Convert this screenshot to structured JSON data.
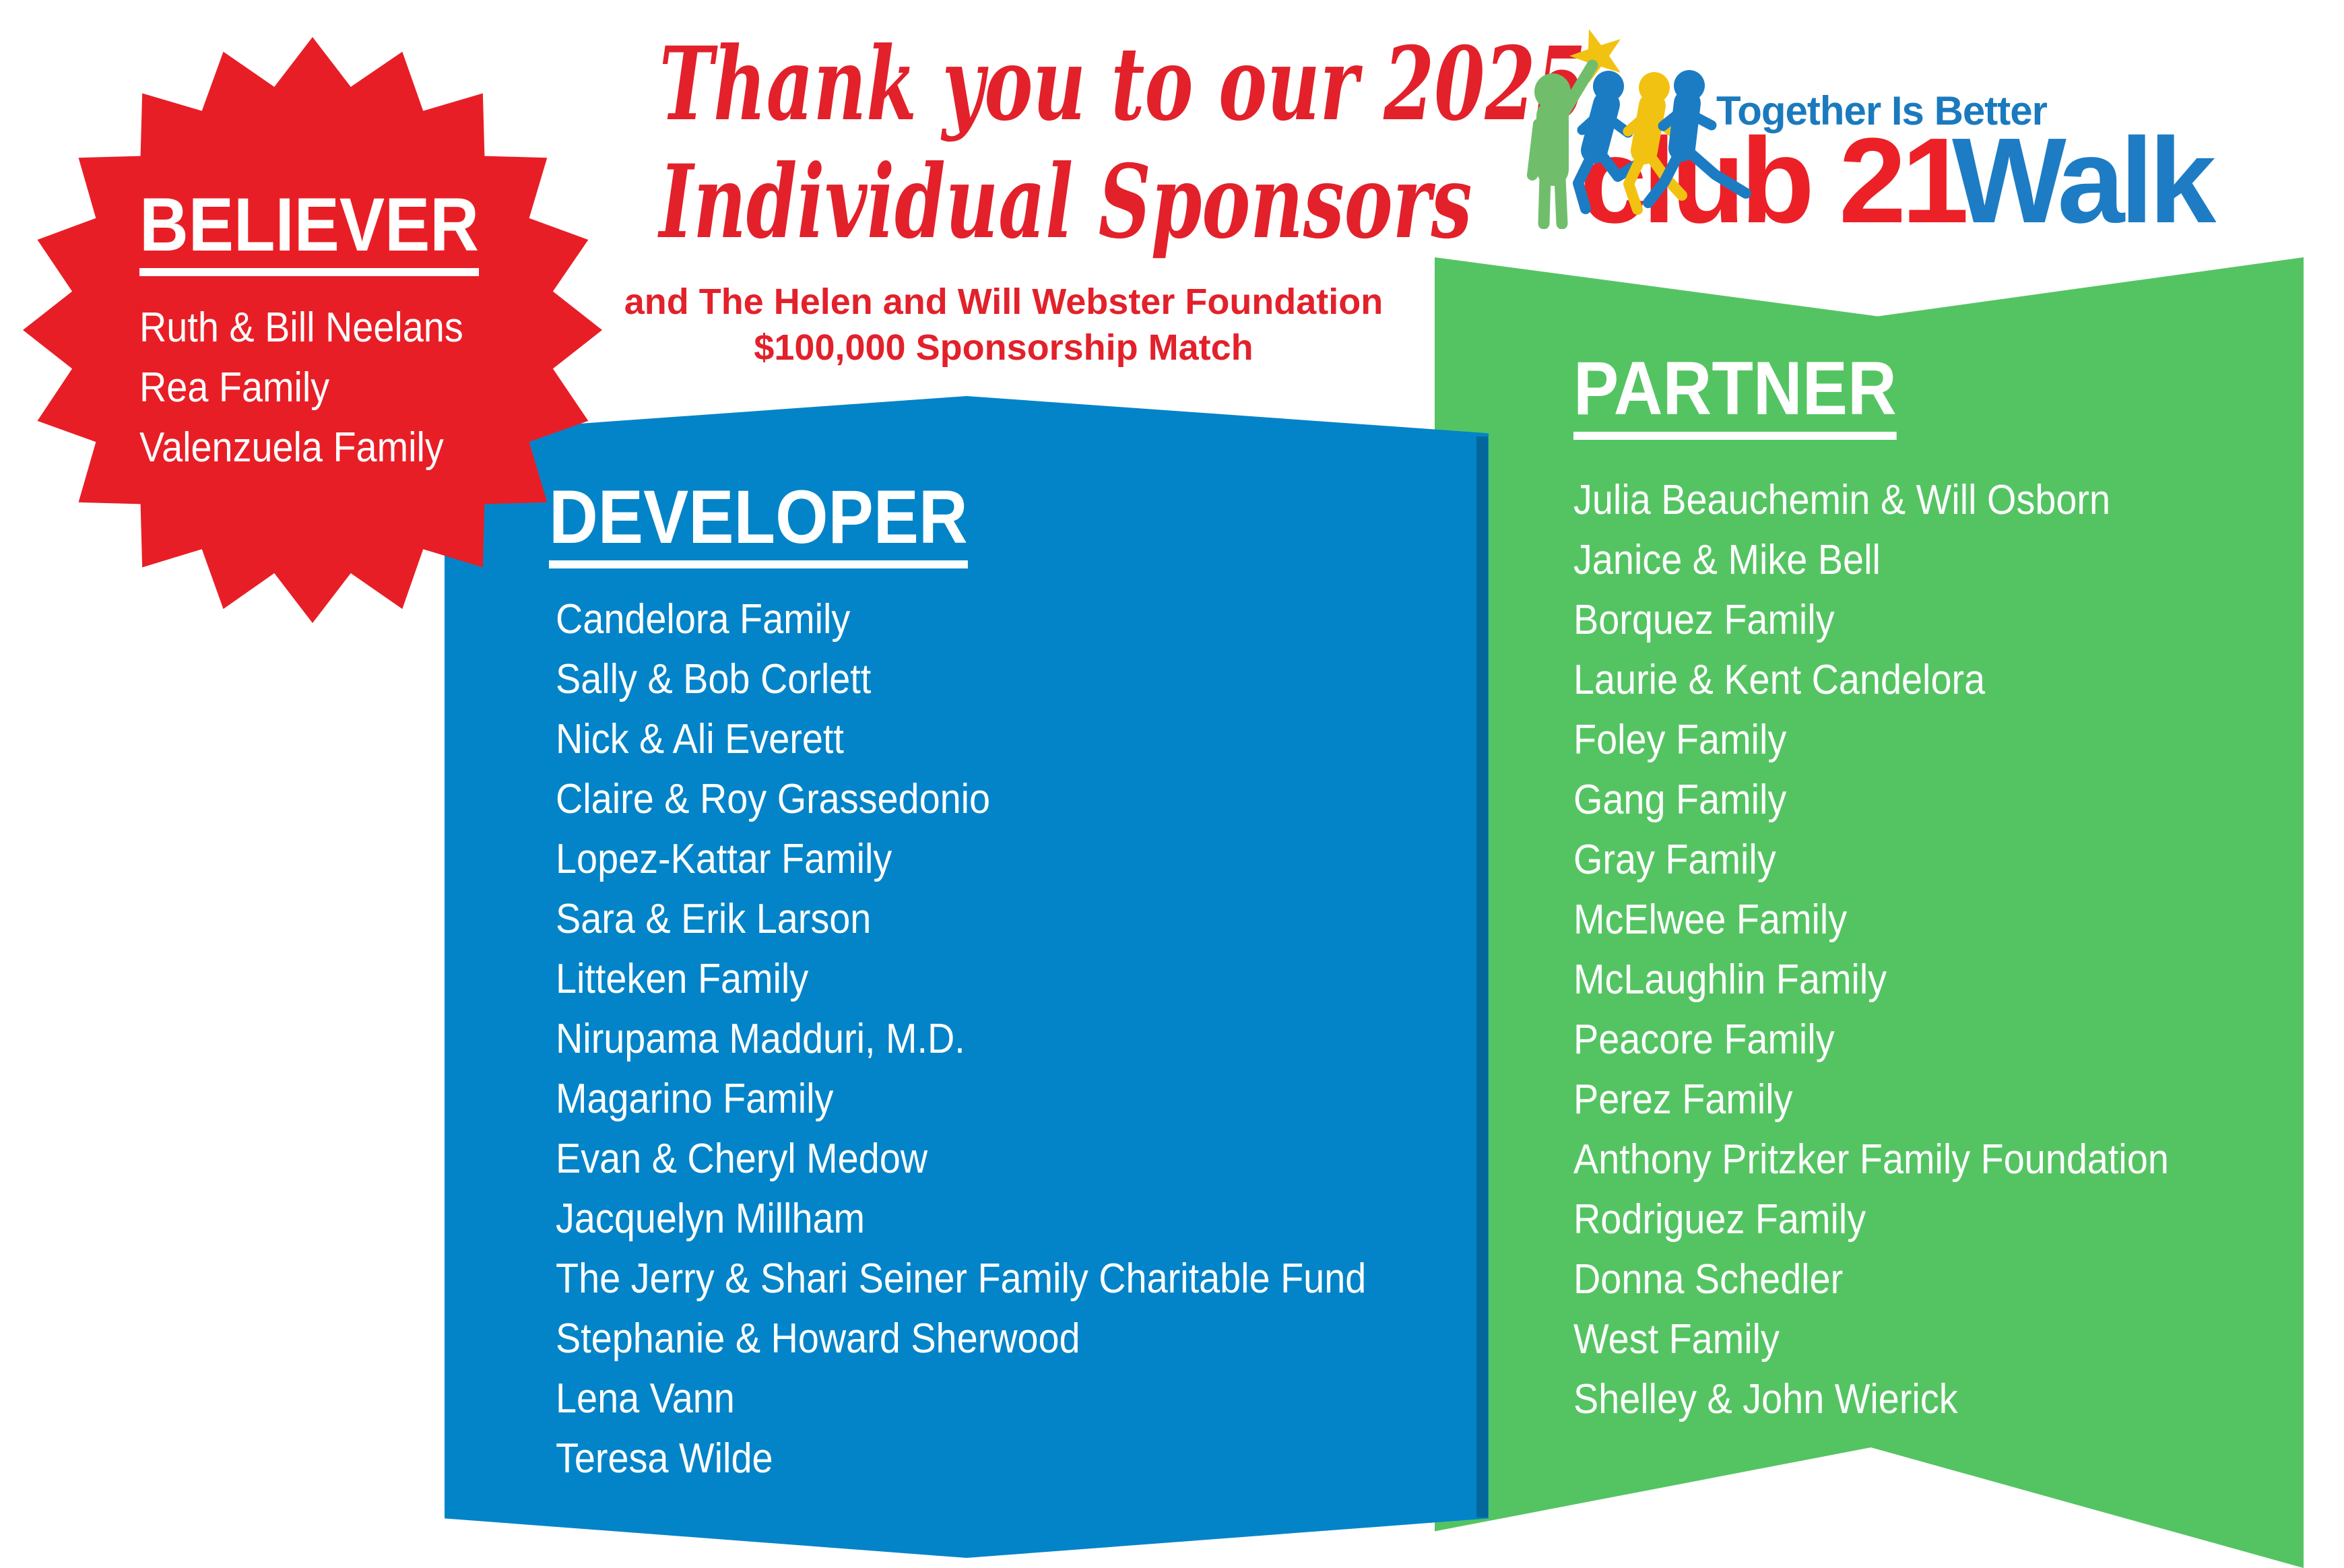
{
  "page": {
    "background": "#FFFFFF"
  },
  "title": {
    "line1": "Thank you to our 2025",
    "line2": "Individual Sponsors",
    "color": "#E2212B"
  },
  "subtitle": {
    "line1": "and The Helen and Will Webster Foundation",
    "line2": "$100,000 Sponsorship Match",
    "color": "#E2212B"
  },
  "logo": {
    "tagline": "Together Is Better",
    "club_text": "club 21",
    "walk_text": "Walk",
    "tagline_color": "#1B7ABD",
    "club_color": "#EC2027",
    "walk_color": "#1D7CC4",
    "star_color": "#F2C212",
    "person_green_color": "#70BE6B",
    "runner_blue_color": "#1B7CC4",
    "runner_yellow_color": "#F2C212",
    "icons": [
      "star-icon",
      "waving-person-icon",
      "runner-icon",
      "runner-icon",
      "runner-icon"
    ]
  },
  "tiers": {
    "believer": {
      "label": "BELIEVER",
      "color": "#E81E26",
      "names": [
        "Ruth & Bill Neelans",
        "Rea Family",
        "Valenzuela Family"
      ]
    },
    "developer": {
      "label": "DEVELOPER",
      "color": "#0484C8",
      "names": [
        "Candelora Family",
        "Sally & Bob Corlett",
        "Nick & Ali Everett",
        "Claire & Roy Grassedonio",
        "Lopez-Kattar Family",
        "Sara & Erik Larson",
        "Litteken Family",
        "Nirupama Madduri, M.D.",
        "Magarino Family",
        "Evan & Cheryl Medow",
        "Jacquelyn Millham",
        "The Jerry & Shari Seiner Family Charitable Fund",
        "Stephanie & Howard Sherwood",
        "Lena Vann",
        "Teresa Wilde"
      ]
    },
    "partner": {
      "label": "PARTNER",
      "color": "#54C462",
      "names": [
        "Julia Beauchemin & Will Osborn",
        "Janice & Mike Bell",
        "Borquez Family",
        "Laurie & Kent Candelora",
        "Foley Family",
        "Gang Family",
        "Gray Family",
        "McElwee Family",
        "McLaughlin Family",
        "Peacore Family",
        "Perez Family",
        "Anthony Pritzker Family Foundation",
        "Rodriguez Family",
        "Donna Schedler",
        "West Family",
        "Shelley & John Wierick"
      ]
    }
  }
}
